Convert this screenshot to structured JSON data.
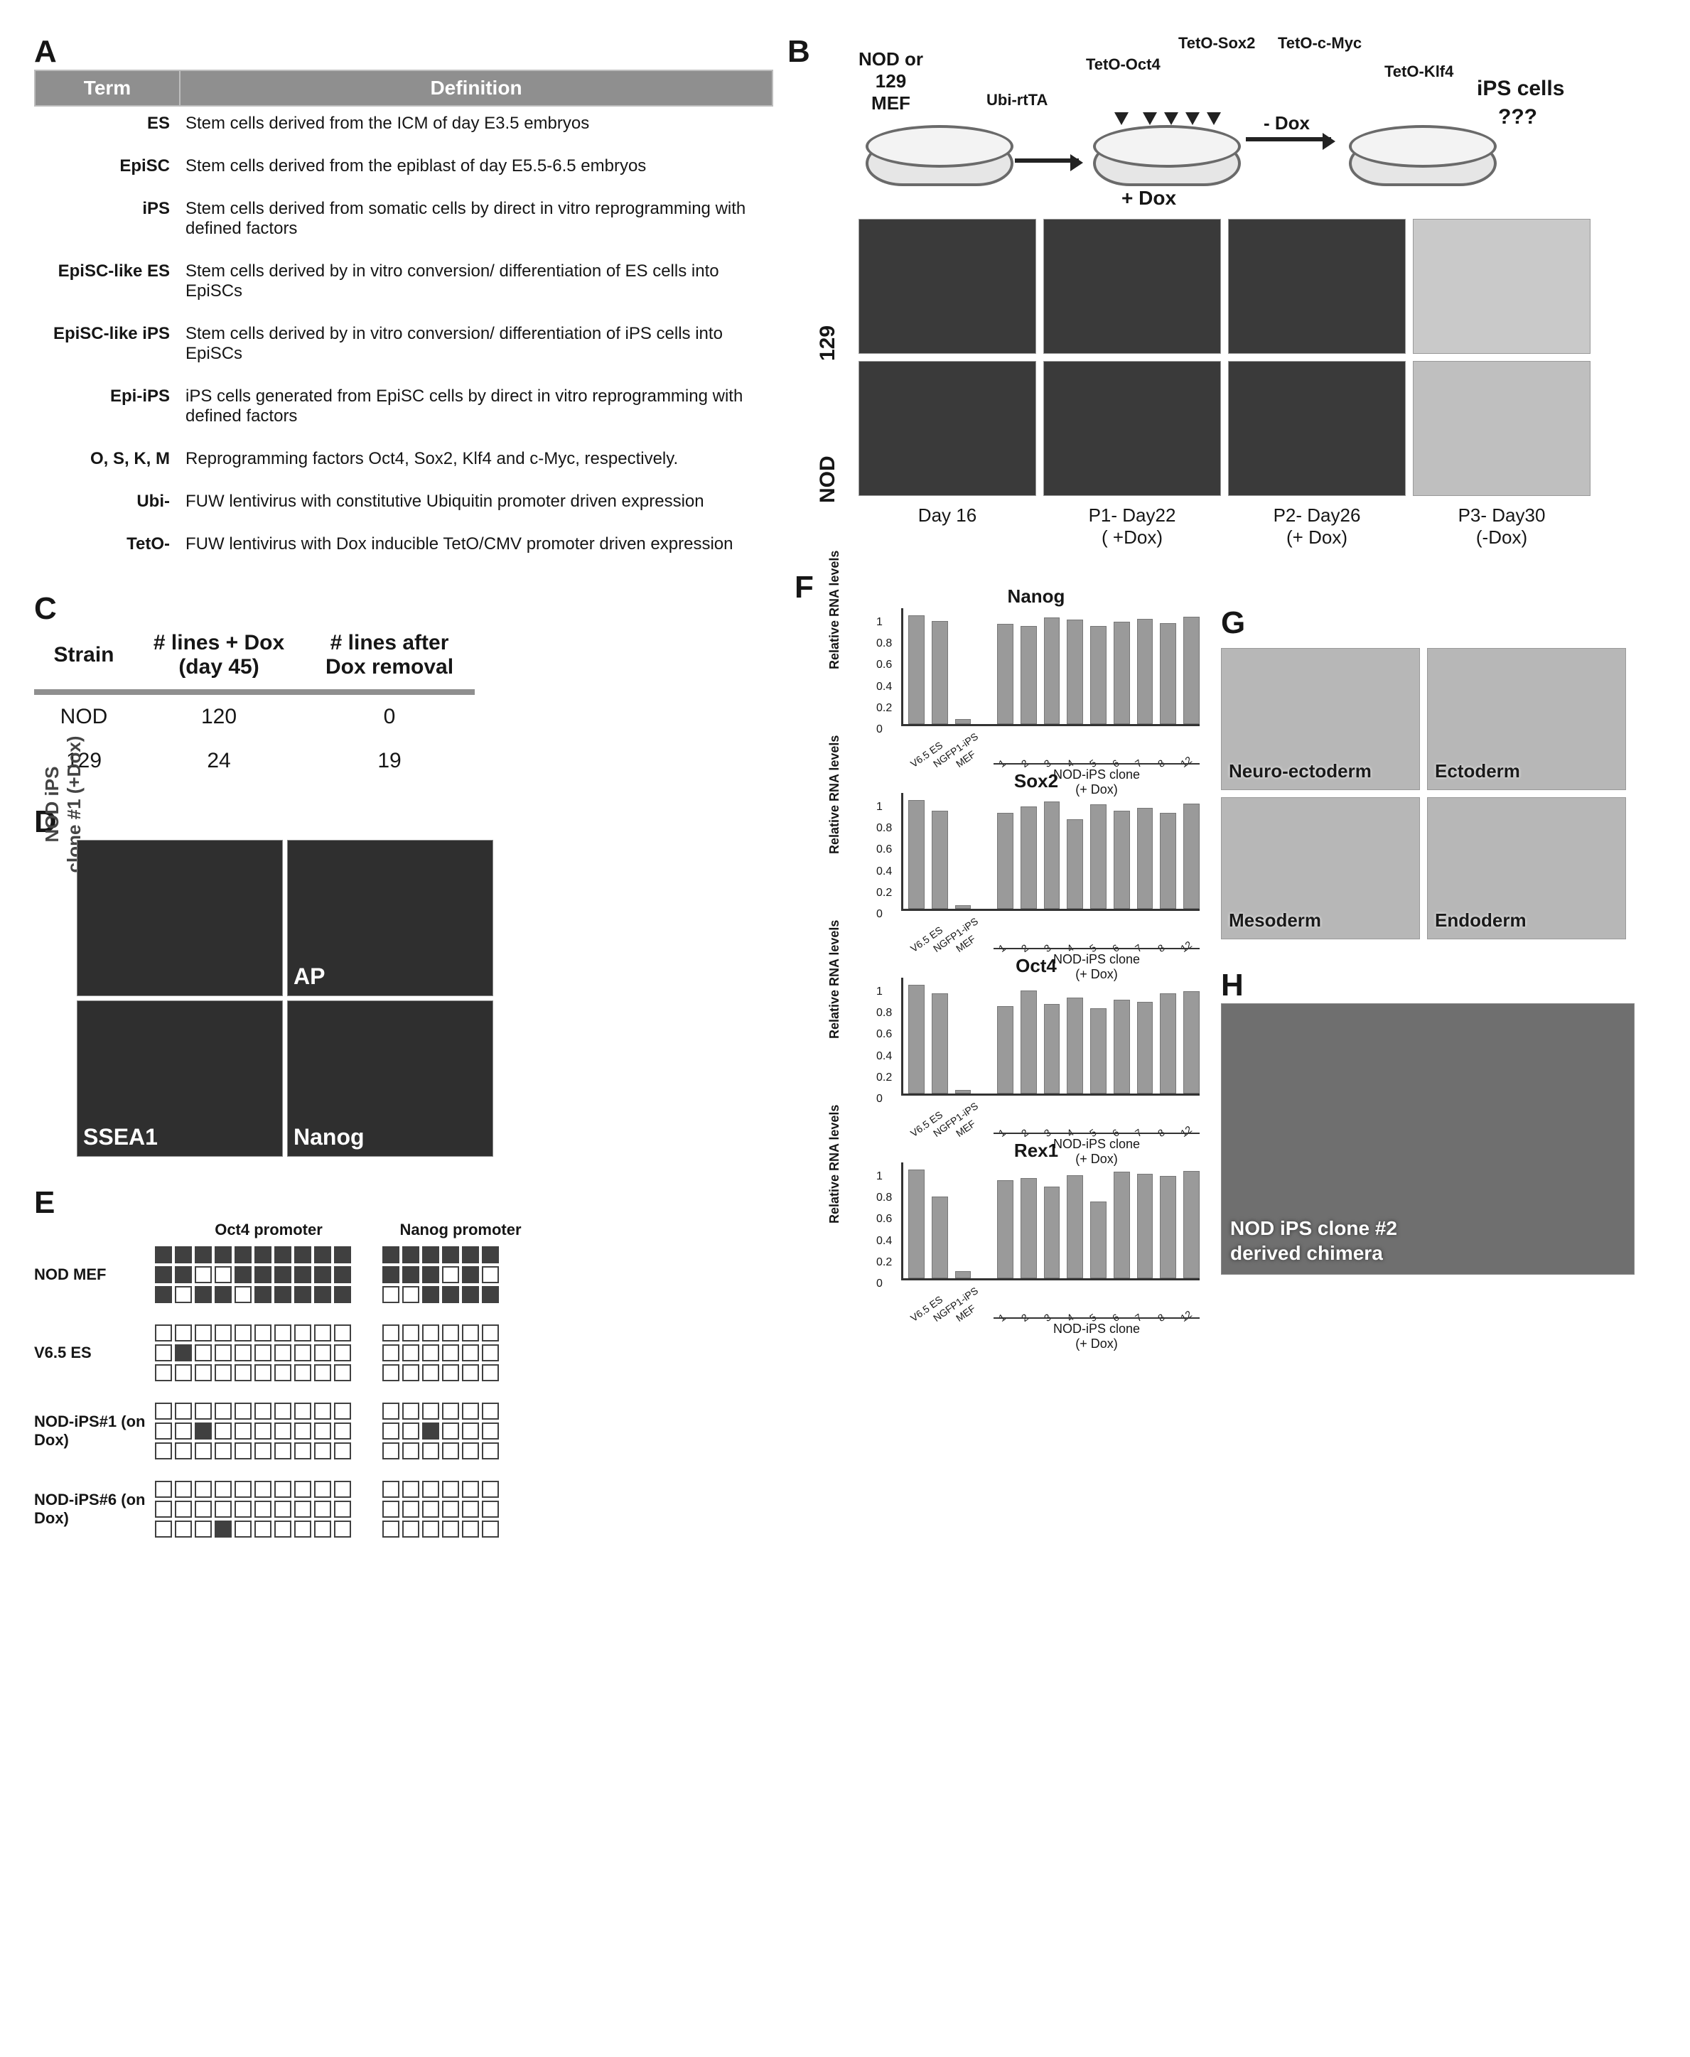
{
  "panelA": {
    "letter": "A",
    "header": {
      "term": "Term",
      "definition": "Definition"
    },
    "rows": [
      {
        "term": "ES",
        "def": "Stem cells derived from the ICM of day E3.5 embryos"
      },
      {
        "term": "EpiSC",
        "def": "Stem cells derived from the epiblast of day E5.5-6.5 embryos"
      },
      {
        "term": "iPS",
        "def": "Stem cells derived from somatic cells by direct in vitro reprogramming with defined factors"
      },
      {
        "term": "EpiSC-like ES",
        "def": "Stem cells derived by in vitro conversion/ differentiation of ES cells into EpiSCs"
      },
      {
        "term": "EpiSC-like iPS",
        "def": "Stem cells derived by in vitro conversion/ differentiation of iPS cells into EpiSCs"
      },
      {
        "term": "Epi-iPS",
        "def": "iPS cells generated from EpiSC cells by direct in vitro reprogramming with defined factors"
      },
      {
        "term": "O, S, K, M",
        "def": "Reprogramming factors Oct4, Sox2, Klf4 and c-Myc, respectively."
      },
      {
        "term": "Ubi-",
        "def": "FUW lentivirus with constitutive Ubiquitin promoter driven expression"
      },
      {
        "term": "TetO-",
        "def": "FUW lentivirus with Dox inducible TetO/CMV promoter driven expression"
      }
    ]
  },
  "panelB": {
    "letter": "B",
    "scheme": {
      "source_label_top": "NOD or",
      "source_label_mid": "129",
      "source_label_bot": "MEF",
      "factors": [
        "Ubi-rtTA",
        "TetO-Oct4",
        "TetO-Sox2",
        "TetO-c-Myc",
        "TetO-Klf4"
      ],
      "plus_dox": "+ Dox",
      "minus_dox": "- Dox",
      "result": "iPS cells",
      "question": "???"
    },
    "row_labels": [
      "129",
      "NOD"
    ],
    "col_labels": [
      {
        "line1": "Day 16",
        "line2": ""
      },
      {
        "line1": "P1- Day22",
        "line2": "( +Dox)"
      },
      {
        "line1": "P2- Day26",
        "line2": "(+ Dox)"
      },
      {
        "line1": "P3- Day30",
        "line2": "(-Dox)"
      }
    ]
  },
  "panelC": {
    "letter": "C",
    "columns": [
      "Strain",
      "# lines + Dox (day 45)",
      "# lines after Dox removal"
    ],
    "rows": [
      {
        "strain": "NOD",
        "with_dox": "120",
        "after_removal": "0"
      },
      {
        "strain": "129",
        "with_dox": "24",
        "after_removal": "19"
      }
    ],
    "header_rule_color": "#8f8f8f"
  },
  "panelD": {
    "letter": "D",
    "side_label_top": "NOD iPS",
    "side_label_bot": "clone #1 (+Dox)",
    "cells": [
      "",
      "AP",
      "SSEA1",
      "Nanog"
    ]
  },
  "panelE": {
    "letter": "E",
    "columns": [
      "",
      "Oct4 promoter",
      "Nanog promoter"
    ],
    "rows": [
      {
        "label": "NOD MEF",
        "oct4": [
          1,
          1,
          1,
          1,
          1,
          1,
          1,
          1,
          1,
          1,
          1,
          1,
          0,
          0,
          1,
          1,
          1,
          1,
          1,
          1,
          1,
          0,
          1,
          1,
          0,
          1,
          1,
          1,
          1,
          1
        ],
        "nanog": [
          1,
          1,
          1,
          1,
          1,
          1,
          1,
          1,
          1,
          0,
          1,
          0,
          0,
          0,
          1,
          1,
          1,
          1
        ]
      },
      {
        "label": "V6.5 ES",
        "oct4": [
          0,
          0,
          0,
          0,
          0,
          0,
          0,
          0,
          0,
          0,
          0,
          1,
          0,
          0,
          0,
          0,
          0,
          0,
          0,
          0,
          0,
          0,
          0,
          0,
          0,
          0,
          0,
          0,
          0,
          0
        ],
        "nanog": [
          0,
          0,
          0,
          0,
          0,
          0,
          0,
          0,
          0,
          0,
          0,
          0,
          0,
          0,
          0,
          0,
          0,
          0
        ]
      },
      {
        "label": "NOD-iPS#1 (on Dox)",
        "oct4": [
          0,
          0,
          0,
          0,
          0,
          0,
          0,
          0,
          0,
          0,
          0,
          0,
          1,
          0,
          0,
          0,
          0,
          0,
          0,
          0,
          0,
          0,
          0,
          0,
          0,
          0,
          0,
          0,
          0,
          0
        ],
        "nanog": [
          0,
          0,
          0,
          0,
          0,
          0,
          0,
          0,
          1,
          0,
          0,
          0,
          0,
          0,
          0,
          0,
          0,
          0
        ]
      },
      {
        "label": "NOD-iPS#6 (on Dox)",
        "oct4": [
          0,
          0,
          0,
          0,
          0,
          0,
          0,
          0,
          0,
          0,
          0,
          0,
          0,
          0,
          0,
          0,
          0,
          0,
          0,
          0,
          0,
          0,
          0,
          1,
          0,
          0,
          0,
          0,
          0,
          0
        ],
        "nanog": [
          0,
          0,
          0,
          0,
          0,
          0,
          0,
          0,
          0,
          0,
          0,
          0,
          0,
          0,
          0,
          0,
          0,
          0
        ]
      }
    ],
    "oct4_cols": 10,
    "oct4_rows": 3,
    "nanog_cols": 6,
    "nanog_rows": 3,
    "filled_color": "#404040",
    "empty_color": "#ffffff",
    "border_color": "#404040"
  },
  "panelF": {
    "letter": "F",
    "ylabel": "Relative RNA levels",
    "yticks": [
      0,
      0.2,
      0.4,
      0.6,
      0.8,
      1
    ],
    "ylim": [
      0,
      1.1
    ],
    "bar_color": "#9a9a9a",
    "control_labels": [
      "V6.5 ES",
      "NGFP1-iPS",
      "MEF"
    ],
    "clone_labels": [
      "1",
      "2",
      "3",
      "4",
      "5",
      "6",
      "7",
      "8",
      "12"
    ],
    "group_caption_top": "NOD-iPS clone",
    "group_caption_bot": "(+ Dox)",
    "charts": [
      {
        "title": "Nanog",
        "controls": [
          1.0,
          0.95,
          0.03
        ],
        "clones": [
          0.92,
          0.9,
          0.98,
          0.96,
          0.9,
          0.94,
          0.97,
          0.93,
          0.99
        ]
      },
      {
        "title": "Sox2",
        "controls": [
          1.0,
          0.9,
          0.02
        ],
        "clones": [
          0.88,
          0.94,
          0.99,
          0.82,
          0.96,
          0.9,
          0.93,
          0.88,
          0.97
        ]
      },
      {
        "title": "Oct4",
        "controls": [
          1.0,
          0.92,
          0.02
        ],
        "clones": [
          0.8,
          0.95,
          0.82,
          0.88,
          0.78,
          0.86,
          0.84,
          0.92,
          0.94
        ]
      },
      {
        "title": "Rex1",
        "controls": [
          1.0,
          0.75,
          0.05
        ],
        "clones": [
          0.9,
          0.92,
          0.84,
          0.95,
          0.7,
          0.98,
          0.96,
          0.94,
          0.99
        ]
      }
    ]
  },
  "panelG": {
    "letter": "G",
    "cells": [
      "Neuro-ectoderm",
      "Ectoderm",
      "Mesoderm",
      "Endoderm"
    ]
  },
  "panelH": {
    "letter": "H",
    "caption_line1": "NOD iPS clone #2",
    "caption_line2": "derived chimera"
  }
}
